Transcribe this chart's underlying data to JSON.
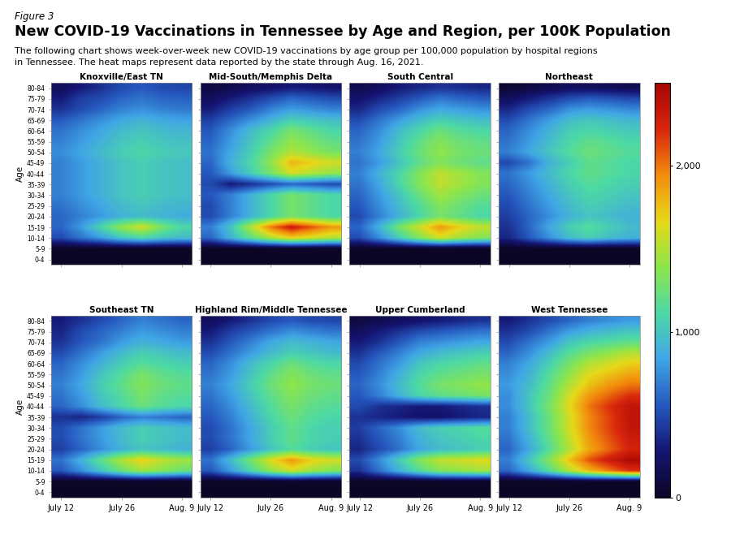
{
  "title": "New COVID-19 Vaccinations in Tennessee by Age and Region, per 100K Population",
  "figure_label": "Figure 3",
  "subtitle": "The following chart shows week-over-week new COVID-19 vaccinations by age group per 100,000 population by hospital regions\nin Tennessee. The heat maps represent data reported by the state through Aug. 16, 2021.",
  "regions": [
    "Knoxville/East TN",
    "Mid-South/Memphis Delta",
    "South Central",
    "Northeast",
    "Southeast TN",
    "Highland Rim/Middle Tennessee",
    "Upper Cumberland",
    "West Tennessee"
  ],
  "age_groups": [
    "80-84",
    "75-79",
    "70-74",
    "65-69",
    "60-64",
    "55-59",
    "50-54",
    "45-49",
    "40-44",
    "35-39",
    "30-34",
    "25-29",
    "20-24",
    "15-19",
    "10-14",
    "5-9",
    "0-4"
  ],
  "x_tick_labels": [
    "July 12",
    "July 26",
    "Aug. 9"
  ],
  "vmin": 0,
  "vmax": 2500,
  "colorbar_ticks": [
    0,
    1000,
    2000
  ],
  "colorbar_labels": [
    "0",
    "1,000",
    "2,000"
  ],
  "background_color": "#ffffff",
  "heatmap_data": {
    "Knoxville/East TN": [
      [
        200,
        300,
        400,
        500,
        550,
        500,
        480
      ],
      [
        300,
        450,
        500,
        600,
        650,
        600,
        580
      ],
      [
        400,
        500,
        600,
        700,
        750,
        700,
        670
      ],
      [
        550,
        650,
        750,
        850,
        900,
        850,
        820
      ],
      [
        650,
        750,
        850,
        950,
        1000,
        950,
        920
      ],
      [
        700,
        800,
        900,
        1000,
        1050,
        1000,
        970
      ],
      [
        750,
        850,
        950,
        1050,
        1100,
        1050,
        1020
      ],
      [
        700,
        800,
        900,
        1000,
        1050,
        1000,
        970
      ],
      [
        700,
        800,
        900,
        1000,
        1050,
        1000,
        970
      ],
      [
        700,
        800,
        900,
        1000,
        1050,
        1000,
        970
      ],
      [
        700,
        800,
        900,
        1000,
        1050,
        1000,
        970
      ],
      [
        650,
        750,
        850,
        950,
        1000,
        950,
        920
      ],
      [
        600,
        700,
        800,
        900,
        950,
        900,
        870
      ],
      [
        600,
        800,
        1100,
        1400,
        1600,
        1300,
        1100
      ],
      [
        500,
        650,
        800,
        1000,
        1100,
        1000,
        950
      ],
      [
        5,
        5,
        5,
        5,
        5,
        5,
        5
      ],
      [
        5,
        5,
        5,
        5,
        5,
        5,
        5
      ]
    ],
    "Mid-South/Memphis Delta": [
      [
        100,
        150,
        200,
        250,
        300,
        280,
        250
      ],
      [
        200,
        300,
        400,
        500,
        600,
        550,
        500
      ],
      [
        300,
        450,
        550,
        700,
        800,
        750,
        700
      ],
      [
        450,
        600,
        750,
        900,
        1050,
        1000,
        950
      ],
      [
        550,
        750,
        950,
        1100,
        1300,
        1200,
        1100
      ],
      [
        600,
        800,
        1000,
        1200,
        1400,
        1300,
        1200
      ],
      [
        650,
        850,
        1050,
        1300,
        1500,
        1400,
        1300
      ],
      [
        600,
        900,
        1100,
        1400,
        1800,
        1700,
        1600
      ],
      [
        550,
        800,
        1050,
        1300,
        1600,
        1500,
        1400
      ],
      [
        500,
        300,
        400,
        500,
        600,
        550,
        500
      ],
      [
        550,
        700,
        900,
        1100,
        1300,
        1200,
        1100
      ],
      [
        500,
        700,
        900,
        1100,
        1300,
        1200,
        1100
      ],
      [
        500,
        700,
        900,
        1100,
        1300,
        1200,
        1100
      ],
      [
        700,
        1000,
        1500,
        2000,
        2300,
        2100,
        1900
      ],
      [
        600,
        900,
        1200,
        1500,
        1700,
        1600,
        1500
      ],
      [
        5,
        5,
        5,
        5,
        5,
        5,
        5
      ],
      [
        5,
        5,
        5,
        5,
        5,
        5,
        5
      ]
    ],
    "South Central": [
      [
        150,
        200,
        300,
        350,
        400,
        380,
        350
      ],
      [
        250,
        350,
        450,
        550,
        650,
        600,
        560
      ],
      [
        350,
        500,
        600,
        750,
        850,
        800,
        750
      ],
      [
        500,
        650,
        800,
        950,
        1050,
        1000,
        950
      ],
      [
        600,
        750,
        950,
        1100,
        1250,
        1150,
        1100
      ],
      [
        650,
        800,
        1000,
        1200,
        1350,
        1250,
        1200
      ],
      [
        700,
        850,
        1050,
        1250,
        1400,
        1300,
        1250
      ],
      [
        650,
        800,
        1000,
        1200,
        1350,
        1250,
        1200
      ],
      [
        700,
        900,
        1100,
        1350,
        1550,
        1450,
        1350
      ],
      [
        650,
        850,
        1100,
        1350,
        1550,
        1450,
        1350
      ],
      [
        600,
        800,
        1000,
        1250,
        1450,
        1350,
        1250
      ],
      [
        550,
        750,
        950,
        1150,
        1350,
        1250,
        1150
      ],
      [
        500,
        700,
        900,
        1100,
        1300,
        1200,
        1100
      ],
      [
        600,
        900,
        1300,
        1600,
        1900,
        1700,
        1550
      ],
      [
        500,
        750,
        1050,
        1350,
        1600,
        1450,
        1350
      ],
      [
        5,
        5,
        5,
        5,
        5,
        5,
        5
      ],
      [
        5,
        5,
        5,
        5,
        5,
        5,
        5
      ]
    ],
    "Northeast": [
      [
        50,
        100,
        150,
        200,
        200,
        180,
        160
      ],
      [
        200,
        300,
        400,
        500,
        550,
        520,
        480
      ],
      [
        350,
        500,
        600,
        750,
        800,
        760,
        720
      ],
      [
        500,
        650,
        800,
        950,
        1000,
        960,
        920
      ],
      [
        600,
        750,
        900,
        1050,
        1100,
        1060,
        1020
      ],
      [
        650,
        800,
        950,
        1100,
        1200,
        1150,
        1100
      ],
      [
        700,
        850,
        1000,
        1150,
        1250,
        1200,
        1150
      ],
      [
        500,
        650,
        900,
        1050,
        1200,
        1150,
        1100
      ],
      [
        650,
        800,
        950,
        1100,
        1200,
        1150,
        1100
      ],
      [
        600,
        750,
        900,
        1050,
        1150,
        1100,
        1050
      ],
      [
        550,
        700,
        850,
        1000,
        1100,
        1050,
        1000
      ],
      [
        500,
        650,
        800,
        950,
        1050,
        1000,
        950
      ],
      [
        450,
        600,
        750,
        900,
        1000,
        950,
        900
      ],
      [
        400,
        600,
        850,
        1050,
        1150,
        1050,
        950
      ],
      [
        350,
        550,
        750,
        950,
        1050,
        950,
        900
      ],
      [
        5,
        5,
        5,
        5,
        5,
        5,
        5
      ],
      [
        5,
        5,
        5,
        5,
        5,
        5,
        5
      ]
    ],
    "Southeast TN": [
      [
        300,
        400,
        500,
        600,
        700,
        650,
        600
      ],
      [
        350,
        500,
        600,
        700,
        800,
        750,
        700
      ],
      [
        400,
        550,
        650,
        800,
        900,
        850,
        800
      ],
      [
        500,
        650,
        800,
        950,
        1050,
        1000,
        950
      ],
      [
        600,
        750,
        900,
        1050,
        1150,
        1100,
        1050
      ],
      [
        650,
        800,
        1000,
        1150,
        1300,
        1200,
        1150
      ],
      [
        700,
        850,
        1050,
        1200,
        1350,
        1250,
        1200
      ],
      [
        650,
        800,
        1000,
        1150,
        1300,
        1200,
        1150
      ],
      [
        600,
        750,
        950,
        1100,
        1250,
        1150,
        1100
      ],
      [
        400,
        350,
        450,
        600,
        700,
        650,
        600
      ],
      [
        500,
        650,
        800,
        950,
        1050,
        1000,
        950
      ],
      [
        500,
        650,
        800,
        950,
        1050,
        1000,
        950
      ],
      [
        450,
        600,
        750,
        900,
        1000,
        950,
        900
      ],
      [
        650,
        900,
        1200,
        1500,
        1700,
        1550,
        1450
      ],
      [
        550,
        750,
        1000,
        1250,
        1450,
        1350,
        1250
      ],
      [
        5,
        5,
        5,
        5,
        5,
        5,
        5
      ],
      [
        5,
        5,
        5,
        5,
        5,
        5,
        5
      ]
    ],
    "Highland Rim/Middle Tennessee": [
      [
        200,
        300,
        400,
        500,
        550,
        500,
        480
      ],
      [
        300,
        450,
        550,
        650,
        750,
        700,
        660
      ],
      [
        400,
        550,
        700,
        850,
        950,
        900,
        850
      ],
      [
        500,
        650,
        800,
        950,
        1050,
        1000,
        950
      ],
      [
        600,
        750,
        950,
        1100,
        1250,
        1150,
        1100
      ],
      [
        650,
        800,
        1000,
        1200,
        1350,
        1250,
        1200
      ],
      [
        700,
        850,
        1050,
        1250,
        1400,
        1300,
        1250
      ],
      [
        650,
        800,
        1000,
        1200,
        1350,
        1250,
        1200
      ],
      [
        600,
        750,
        950,
        1150,
        1300,
        1200,
        1150
      ],
      [
        550,
        700,
        900,
        1100,
        1250,
        1150,
        1100
      ],
      [
        500,
        650,
        850,
        1050,
        1200,
        1100,
        1050
      ],
      [
        500,
        650,
        850,
        1050,
        1200,
        1100,
        1050
      ],
      [
        450,
        600,
        800,
        1000,
        1150,
        1050,
        1000
      ],
      [
        650,
        950,
        1300,
        1650,
        1900,
        1700,
        1600
      ],
      [
        550,
        800,
        1100,
        1400,
        1600,
        1450,
        1350
      ],
      [
        5,
        5,
        5,
        5,
        5,
        5,
        5
      ],
      [
        5,
        5,
        5,
        5,
        5,
        5,
        5
      ]
    ],
    "Upper Cumberland": [
      [
        100,
        150,
        200,
        250,
        300,
        350,
        400
      ],
      [
        200,
        300,
        400,
        500,
        550,
        600,
        650
      ],
      [
        300,
        400,
        550,
        700,
        750,
        800,
        850
      ],
      [
        400,
        550,
        700,
        850,
        950,
        1000,
        1050
      ],
      [
        500,
        650,
        800,
        1000,
        1100,
        1150,
        1200
      ],
      [
        550,
        700,
        900,
        1100,
        1200,
        1250,
        1300
      ],
      [
        600,
        750,
        950,
        1150,
        1300,
        1350,
        1400
      ],
      [
        550,
        700,
        900,
        1100,
        1200,
        1250,
        1300
      ],
      [
        500,
        400,
        350,
        300,
        300,
        350,
        400
      ],
      [
        400,
        350,
        300,
        250,
        250,
        300,
        350
      ],
      [
        450,
        600,
        750,
        950,
        1050,
        1100,
        1150
      ],
      [
        400,
        550,
        700,
        900,
        1000,
        1050,
        1100
      ],
      [
        350,
        500,
        650,
        850,
        950,
        1000,
        1050
      ],
      [
        500,
        750,
        1050,
        1350,
        1550,
        1600,
        1650
      ],
      [
        400,
        650,
        900,
        1150,
        1350,
        1400,
        1450
      ],
      [
        5,
        5,
        5,
        5,
        5,
        5,
        5
      ],
      [
        5,
        5,
        5,
        5,
        5,
        5,
        5
      ]
    ],
    "West Tennessee": [
      [
        300,
        400,
        500,
        600,
        700,
        750,
        800
      ],
      [
        400,
        500,
        650,
        800,
        900,
        950,
        1000
      ],
      [
        500,
        650,
        800,
        1000,
        1100,
        1150,
        1200
      ],
      [
        600,
        750,
        950,
        1150,
        1300,
        1400,
        1500
      ],
      [
        700,
        850,
        1050,
        1300,
        1500,
        1600,
        1700
      ],
      [
        750,
        900,
        1150,
        1400,
        1650,
        1750,
        1850
      ],
      [
        800,
        950,
        1200,
        1500,
        1750,
        1900,
        2000
      ],
      [
        750,
        1000,
        1250,
        1600,
        1900,
        2050,
        2200
      ],
      [
        750,
        1000,
        1300,
        1650,
        2000,
        2200,
        2350
      ],
      [
        700,
        950,
        1250,
        1600,
        1950,
        2150,
        2350
      ],
      [
        700,
        950,
        1250,
        1600,
        1950,
        2150,
        2350
      ],
      [
        650,
        900,
        1200,
        1550,
        1900,
        2100,
        2300
      ],
      [
        600,
        850,
        1150,
        1500,
        1850,
        2050,
        2250
      ],
      [
        700,
        1000,
        1350,
        1750,
        2100,
        2300,
        2450
      ],
      [
        600,
        850,
        1150,
        1500,
        1800,
        2000,
        2200
      ],
      [
        5,
        5,
        5,
        5,
        5,
        5,
        5
      ],
      [
        5,
        5,
        5,
        5,
        5,
        5,
        5
      ]
    ]
  }
}
